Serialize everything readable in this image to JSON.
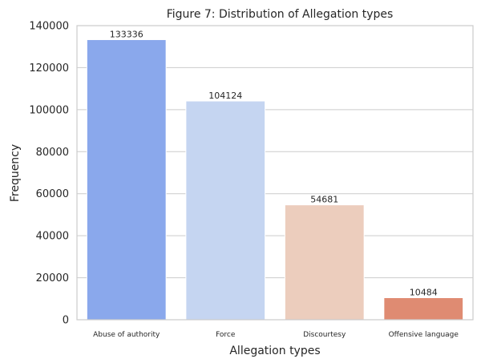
{
  "chart_data": {
    "type": "bar",
    "title": "Figure 7: Distribution of Allegation types",
    "xlabel": "Allegation types",
    "ylabel": "Frequency",
    "categories": [
      "Abuse of authority",
      "Force",
      "Discourtesy",
      "Offensive language"
    ],
    "values": [
      133336,
      104124,
      54681,
      10484
    ],
    "data_labels": [
      "133336",
      "104124",
      "54681",
      "10484"
    ],
    "colors": [
      "#8aa8ec",
      "#c5d5f1",
      "#eccdbd",
      "#df8b72"
    ],
    "ylim": [
      0,
      140000
    ],
    "yticks": [
      0,
      20000,
      40000,
      60000,
      80000,
      100000,
      120000,
      140000
    ],
    "ytick_labels": [
      "0",
      "20000",
      "40000",
      "60000",
      "80000",
      "100000",
      "120000",
      "140000"
    ],
    "grid": true,
    "grid_axis": "y"
  }
}
